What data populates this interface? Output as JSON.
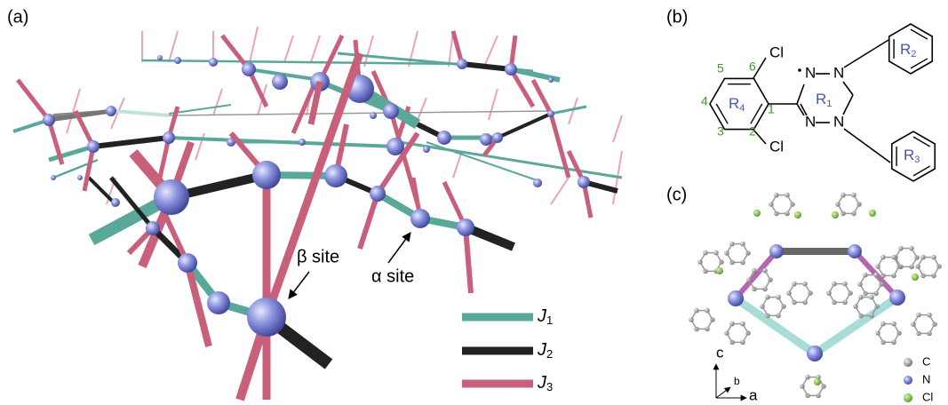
{
  "panel_a": {
    "label": "(a)",
    "beta_site": "β site",
    "alpha_site": "α site",
    "legend": [
      {
        "symbol": "J",
        "subscript": "1"
      },
      {
        "symbol": "J",
        "subscript": "2"
      },
      {
        "symbol": "J",
        "subscript": "3"
      }
    ]
  },
  "panel_b": {
    "label": "(b)",
    "atoms": [
      "Cl",
      "Cl",
      "N",
      "N",
      "N",
      "N"
    ],
    "rings": [
      {
        "symbol": "R",
        "subscript": "1"
      },
      {
        "symbol": "R",
        "subscript": "2"
      },
      {
        "symbol": "R",
        "subscript": "3"
      },
      {
        "symbol": "R",
        "subscript": "4"
      }
    ],
    "positions": [
      "1",
      "2",
      "3",
      "4",
      "5",
      "6"
    ]
  },
  "panel_c": {
    "label": "(c)",
    "axes": [
      "c",
      "b",
      "a"
    ],
    "legend": [
      "C",
      "N",
      "Cl"
    ]
  }
}
